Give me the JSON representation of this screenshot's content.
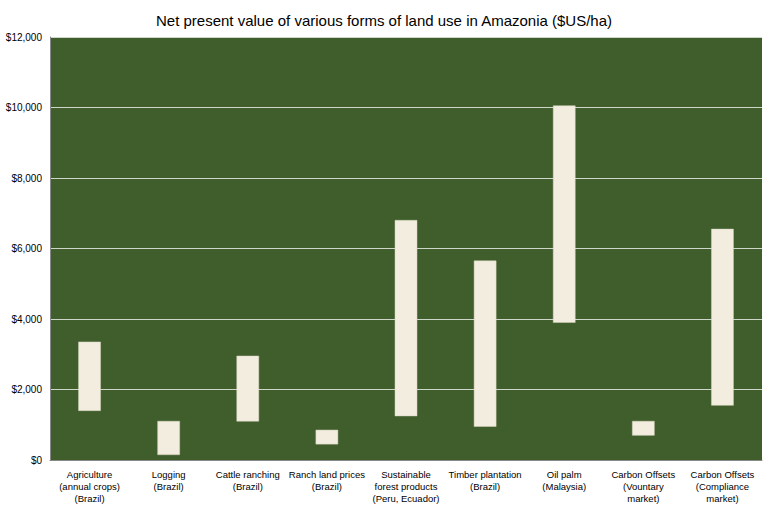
{
  "chart_data": {
    "type": "range_bar",
    "title": "Net present value of various forms of land use in Amazonia ($US/ha)",
    "categories": [
      "Agriculture\n(annual crops)\n(Brazil)",
      "Logging\n(Brazil)",
      "Cattle ranching\n(Brazil)",
      "Ranch land prices\n(Brazil)",
      "Sustainable\nforest products\n(Peru, Ecuador)",
      "Timber plantation\n(Brazil)",
      "Oil palm\n(Malaysia)",
      "Carbon Offsets\n(Vountary\nmarket)",
      "Carbon Offsets\n(Compliance\nmarket)"
    ],
    "low": [
      1400,
      150,
      1100,
      450,
      1250,
      950,
      3900,
      700,
      1550
    ],
    "high": [
      3350,
      1100,
      2950,
      850,
      6800,
      5650,
      10050,
      1100,
      6550
    ],
    "color": "#f2eddf",
    "ylim": [
      0,
      12000
    ],
    "yticks": [
      {
        "value": 0,
        "label": "$0"
      },
      {
        "value": 2000,
        "label": "$2,000"
      },
      {
        "value": 4000,
        "label": "$4,000"
      },
      {
        "value": 6000,
        "label": "$6,000"
      },
      {
        "value": 8000,
        "label": "$8,000"
      },
      {
        "value": 10000,
        "label": "$10,000"
      },
      {
        "value": 12000,
        "label": "$12,000"
      }
    ],
    "grid": true
  }
}
